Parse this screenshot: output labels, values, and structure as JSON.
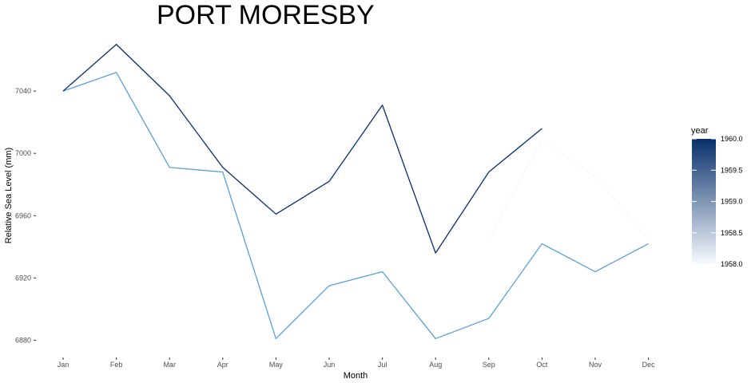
{
  "chart_data": {
    "type": "line",
    "title": "PORT MORESBY",
    "xlabel": "Month",
    "ylabel": "Relative Sea Level (mm)",
    "categories": [
      "Jan",
      "Feb",
      "Mar",
      "Apr",
      "May",
      "Jun",
      "Jul",
      "Aug",
      "Sep",
      "Oct",
      "Nov",
      "Dec"
    ],
    "ylim": [
      6872,
      7078
    ],
    "y_ticks": [
      6880,
      6920,
      6960,
      7000,
      7040
    ],
    "grid": false,
    "legend": {
      "title": "year",
      "position": "right",
      "type": "colorbar",
      "range": [
        1958.0,
        1960.0
      ],
      "ticks": [
        "1958.0",
        "1958.5",
        "1959.0",
        "1959.5",
        "1960.0"
      ],
      "color_low": "#f7fbff",
      "color_high": "#08306b"
    },
    "series": [
      {
        "year": 1958,
        "color": "#f4f8fd",
        "values": [
          null,
          null,
          null,
          null,
          null,
          null,
          null,
          null,
          6945,
          7009,
          6985,
          6945
        ]
      },
      {
        "year": 1959,
        "color": "#5aa0d6",
        "values": [
          7040,
          7052,
          6991,
          6988,
          6881,
          6915,
          6924,
          6881,
          6894,
          6942,
          6924,
          6942
        ]
      },
      {
        "year": 1960,
        "color": "#0b2f6b",
        "values": [
          7040,
          7070,
          7037,
          6991,
          6961,
          6982,
          7031,
          6936,
          6988,
          7016,
          null,
          null
        ]
      }
    ]
  }
}
